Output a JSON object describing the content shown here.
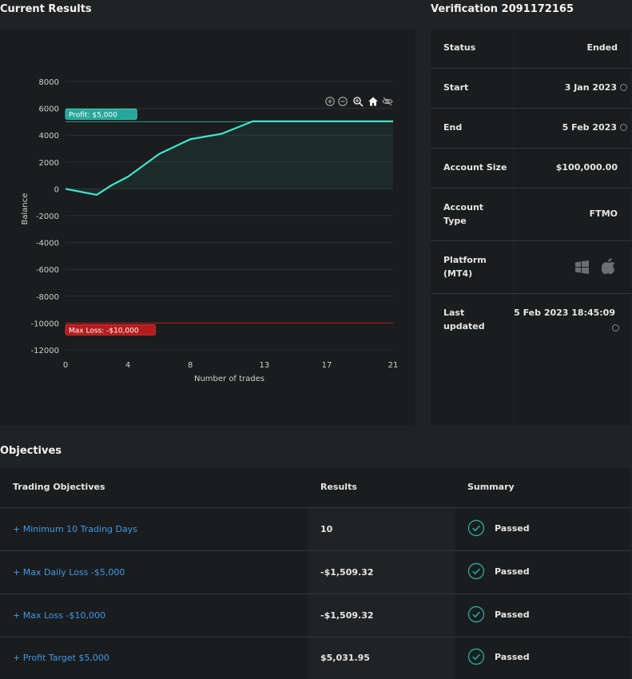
{
  "current_results": {
    "title": "Current Results"
  },
  "verification": {
    "title": "Verification 2091172165",
    "rows": [
      {
        "label": "Status",
        "value": "Ended"
      },
      {
        "label": "Start",
        "value": "3 Jan 2023"
      },
      {
        "label": "End",
        "value": "5 Feb 2023"
      },
      {
        "label": "Account Size",
        "value": "$100,000.00"
      },
      {
        "label": "Account Type",
        "value": "FTMO"
      },
      {
        "label": "Platform (MT4)",
        "value": "windows / apple"
      },
      {
        "label": "Last updated",
        "value": "5 Feb 2023 18:45:09"
      }
    ],
    "icons": {
      "clock": "clock-icon",
      "windows": "windows-icon",
      "apple": "apple-icon"
    }
  },
  "chart_toolbar": [
    "zoom-in-icon",
    "zoom-out-icon",
    "zoom-select-icon",
    "home-icon",
    "hide-icon"
  ],
  "chart_data": {
    "type": "line",
    "xlabel": "Number of trades",
    "ylabel": "Balance",
    "x_ticks": [
      "0",
      "4",
      "8",
      "13",
      "17",
      "21"
    ],
    "x_tick_values": [
      0,
      4,
      8,
      12.75,
      16.75,
      21
    ],
    "y_ticks": [
      "8000",
      "6000",
      "4000",
      "2000",
      "0",
      "-2000",
      "-4000",
      "-6000",
      "-8000",
      "-10000",
      "-12000"
    ],
    "ylim": [
      -12000,
      8000
    ],
    "xlim": [
      0,
      21
    ],
    "series": [
      {
        "x": [
          0,
          2,
          3,
          4,
          6,
          8,
          10,
          12,
          21
        ],
        "y": [
          0,
          -450,
          300,
          900,
          2600,
          3700,
          4100,
          5032,
          5032
        ]
      }
    ],
    "annotations": [
      {
        "label": "Profit: $5,000",
        "y": 5000,
        "color": "#26a69a"
      },
      {
        "label": "Max Loss: -$10,000",
        "y": -10000,
        "color": "#b71c1c"
      }
    ],
    "line_color": "#3ee6d2",
    "grid": true
  },
  "objectives": {
    "title": "Objectives",
    "headers": {
      "objective": "Trading Objectives",
      "results": "Results",
      "summary": "Summary"
    },
    "rows": [
      {
        "objective": "+ Minimum 10 Trading Days",
        "result": "10",
        "summary": "Passed"
      },
      {
        "objective": "+ Max Daily Loss -$5,000",
        "result": "-$1,509.32",
        "summary": "Passed"
      },
      {
        "objective": "+ Max Loss -$10,000",
        "result": "-$1,509.32",
        "summary": "Passed"
      },
      {
        "objective": "+ Profit Target $5,000",
        "result": "$5,031.95",
        "summary": "Passed"
      }
    ],
    "passed_color": "#26a69a"
  }
}
